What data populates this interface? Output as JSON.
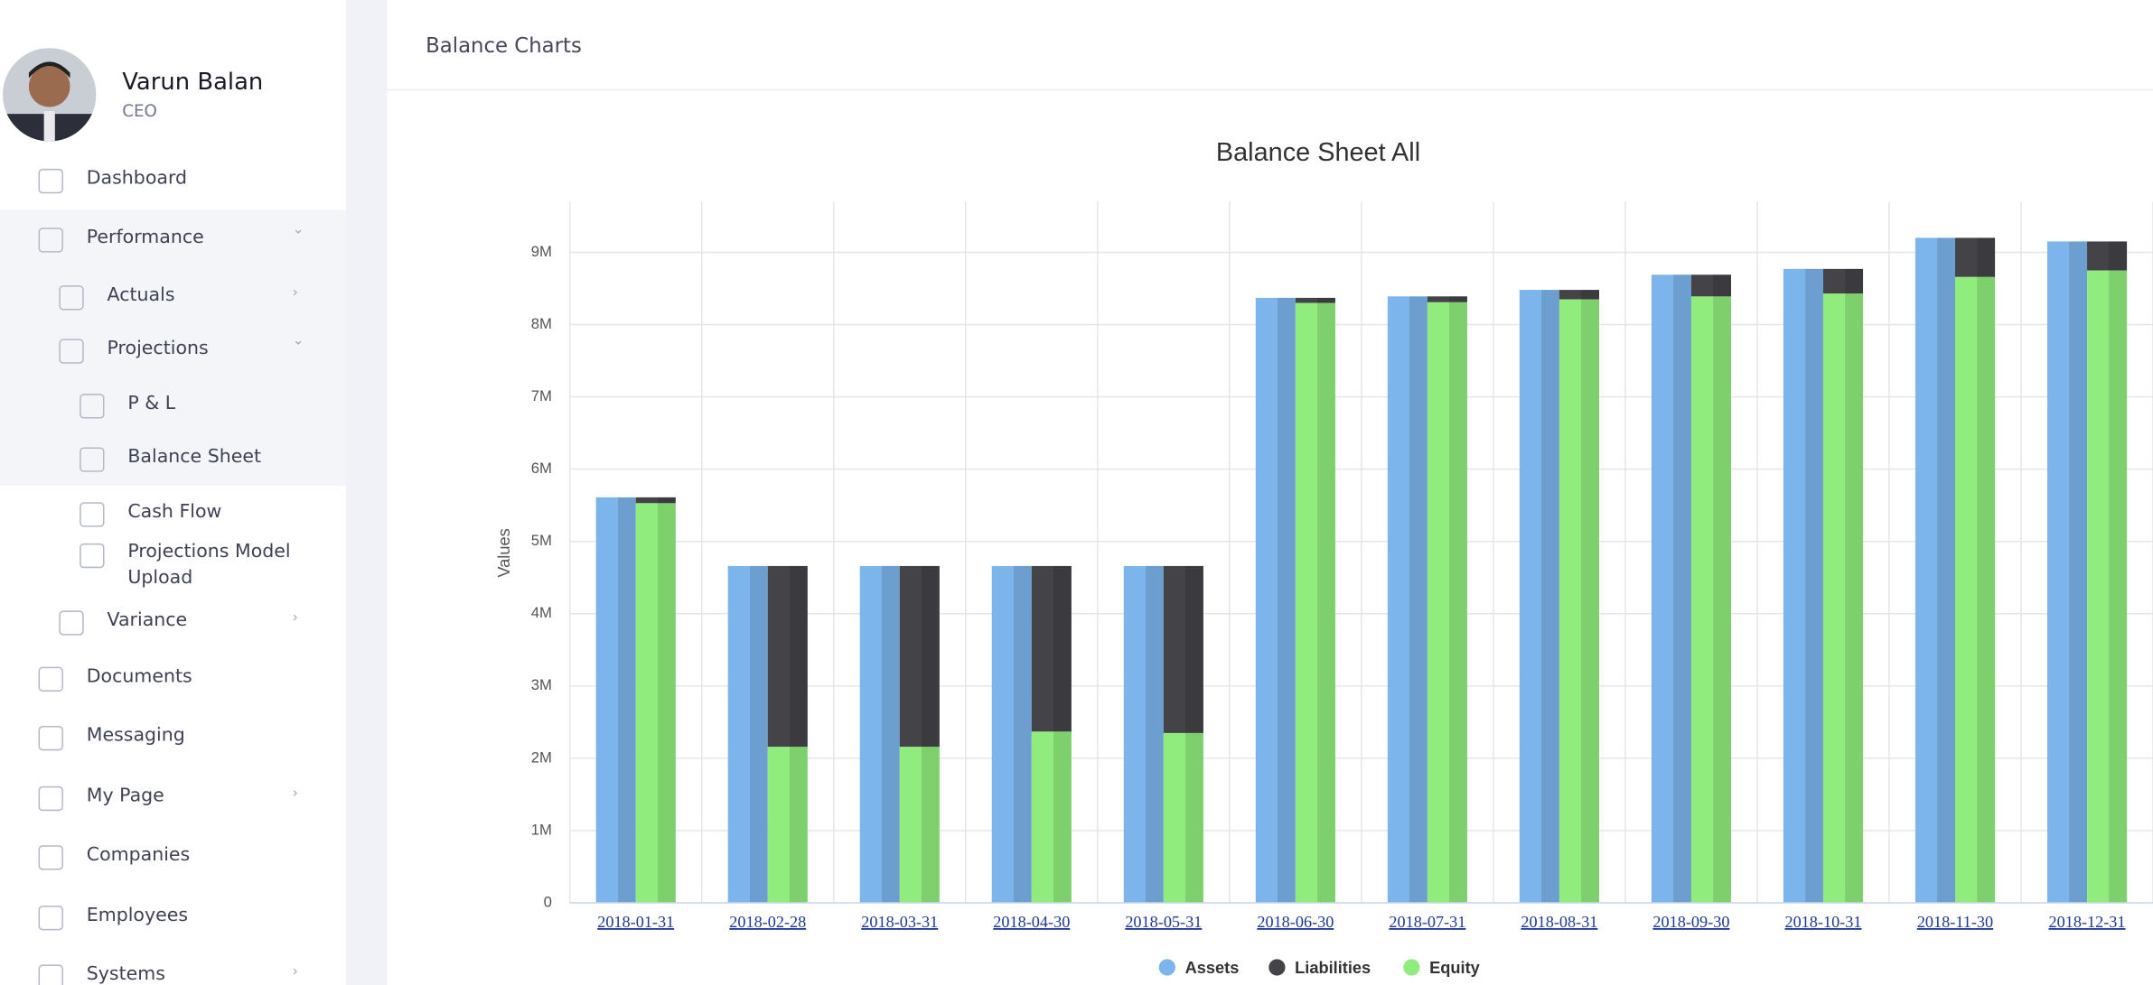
{
  "user": {
    "name": "Varun Balan",
    "role": "CEO"
  },
  "nav": [
    "Dashboard",
    "Performance",
    "Actuals",
    "Projections",
    "P & L",
    "Balance Sheet",
    "Cash Flow",
    "Projections Model Upload",
    "Variance",
    "Documents",
    "Messaging",
    "My Page",
    "Companies",
    "Employees",
    "Systems"
  ],
  "header": {
    "title": "Balance Charts"
  },
  "chart_data": {
    "type": "bar",
    "title": "Balance Sheet All",
    "y_label": "Values",
    "categories": [
      "2018-01-31",
      "2018-02-28",
      "2018-03-31",
      "2018-04-30",
      "2018-05-31",
      "2018-06-30",
      "2018-07-31",
      "2018-08-31",
      "2018-09-30",
      "2018-10-31",
      "2018-11-30",
      "2018-12-31"
    ],
    "series": [
      {
        "name": "Assets",
        "color": "#7cb5ec",
        "stack": "assets",
        "values": [
          5610000,
          4660000,
          4660000,
          4660000,
          4660000,
          8370000,
          8390000,
          8480000,
          8690000,
          8770000,
          9200000,
          9150000
        ]
      },
      {
        "name": "Liabilities",
        "color": "#434348",
        "stack": "balance",
        "values": [
          80000,
          2500000,
          2500000,
          2290000,
          2310000,
          70000,
          80000,
          130000,
          300000,
          340000,
          540000,
          400000
        ]
      },
      {
        "name": "Equity",
        "color": "#90ed7d",
        "stack": "balance",
        "values": [
          5530000,
          2160000,
          2160000,
          2370000,
          2350000,
          8300000,
          8310000,
          8350000,
          8390000,
          8430000,
          8660000,
          8750000
        ]
      }
    ],
    "ylim": [
      0,
      9700000
    ],
    "yticks": [
      {
        "value": 0,
        "label": "0"
      },
      {
        "value": 1000000,
        "label": "1M"
      },
      {
        "value": 2000000,
        "label": "2M"
      },
      {
        "value": 3000000,
        "label": "3M"
      },
      {
        "value": 4000000,
        "label": "4M"
      },
      {
        "value": 5000000,
        "label": "5M"
      },
      {
        "value": 6000000,
        "label": "6M"
      },
      {
        "value": 7000000,
        "label": "7M"
      },
      {
        "value": 8000000,
        "label": "8M"
      },
      {
        "value": 9000000,
        "label": "9M"
      }
    ],
    "grid": true,
    "legend": "bottom"
  }
}
